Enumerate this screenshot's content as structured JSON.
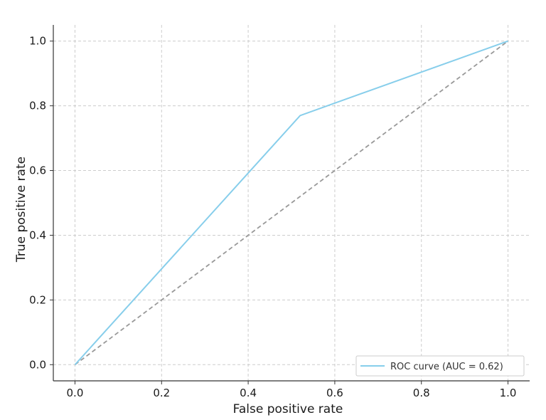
{
  "chart_data": {
    "type": "line",
    "title": "",
    "xlabel": "False positive rate",
    "ylabel": "True positive rate",
    "xlim": [
      -0.05,
      1.05
    ],
    "ylim": [
      -0.05,
      1.05
    ],
    "x_ticks": [
      0.0,
      0.2,
      0.4,
      0.6,
      0.8,
      1.0
    ],
    "y_ticks": [
      0.0,
      0.2,
      0.4,
      0.6,
      0.8,
      1.0
    ],
    "x_tick_labels": [
      "0.0",
      "0.2",
      "0.4",
      "0.6",
      "0.8",
      "1.0"
    ],
    "y_tick_labels": [
      "0.0",
      "0.2",
      "0.4",
      "0.6",
      "0.8",
      "1.0"
    ],
    "grid": true,
    "legend_position": "bottom-right",
    "series": [
      {
        "name": "ROC curve (AUC = 0.62)",
        "color": "#87ceeb",
        "style": "solid",
        "x": [
          0.0,
          0.52,
          1.0
        ],
        "y": [
          0.0,
          0.77,
          1.0
        ]
      },
      {
        "color": "#999999",
        "style": "dashed",
        "x": [
          0.0,
          1.0
        ],
        "y": [
          0.0,
          1.0
        ]
      }
    ]
  }
}
